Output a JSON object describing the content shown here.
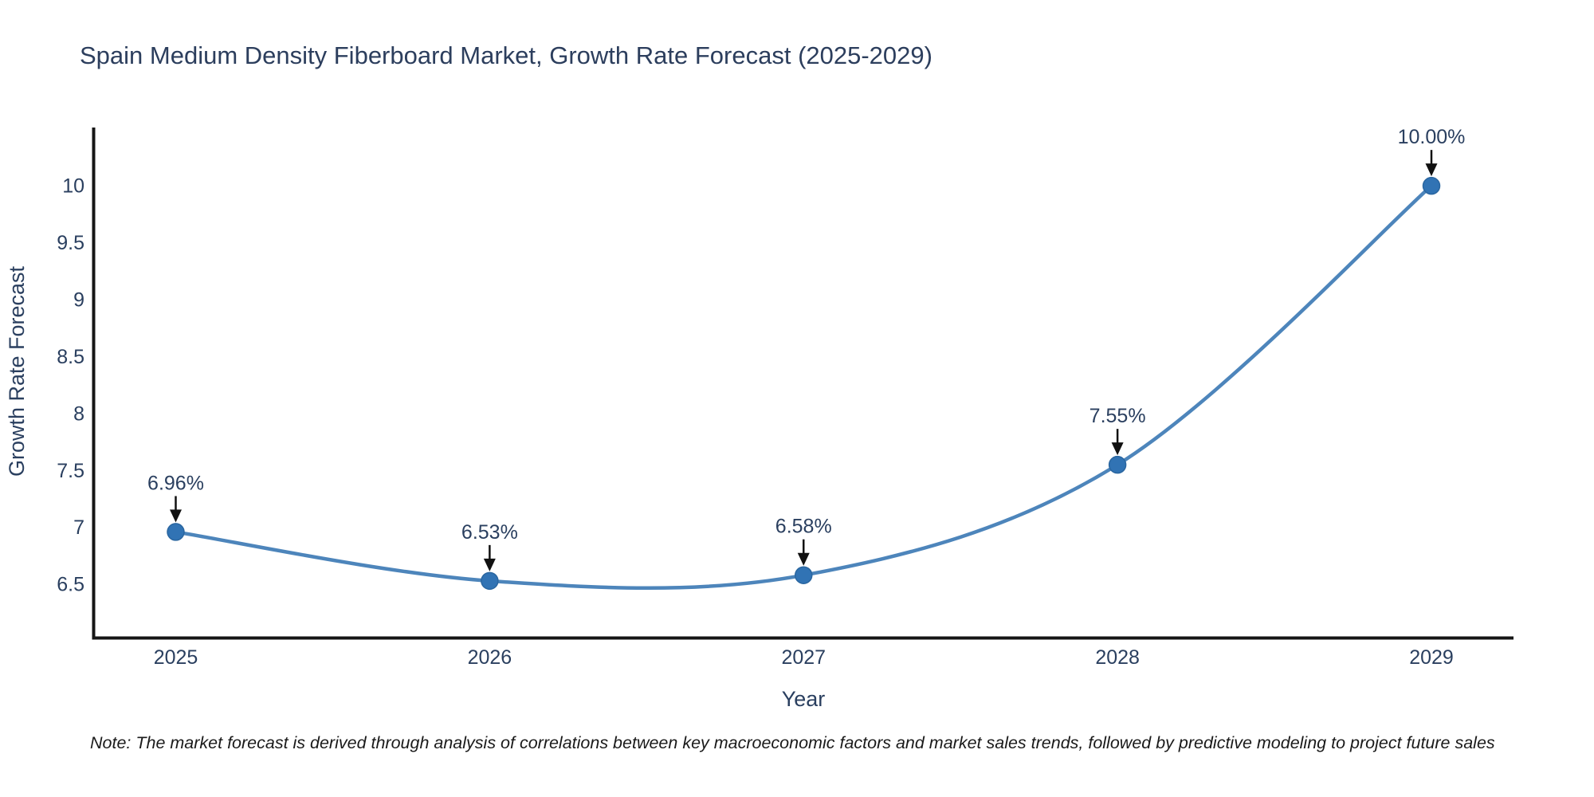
{
  "title": "Spain Medium Density Fiberboard Market, Growth Rate Forecast (2025-2029)",
  "note": "Note: The market forecast is derived through analysis of correlations between key macroeconomic factors and market sales trends, followed by predictive modeling to project future sales",
  "chart_data": {
    "type": "line",
    "title": "Spain Medium Density Fiberboard Market, Growth Rate Forecast (2025-2029)",
    "xlabel": "Year",
    "ylabel": "Growth Rate Forecast",
    "categories": [
      "2025",
      "2026",
      "2027",
      "2028",
      "2029"
    ],
    "values": [
      6.96,
      6.53,
      6.58,
      7.55,
      10.0
    ],
    "point_labels": [
      "6.96%",
      "6.53%",
      "6.58%",
      "7.55%",
      "10.00%"
    ],
    "yticks": [
      6.5,
      7,
      7.5,
      8,
      8.5,
      9,
      9.5,
      10
    ],
    "ylim": [
      6.025,
      10.512
    ],
    "grid": false,
    "legend": false,
    "line_shape": "spline",
    "annotation_style": "value-label-with-down-arrow",
    "colors": {
      "line": "#4d85bb",
      "marker": "#3173b4",
      "marker_edge": "#2a66a0",
      "axis_line": "#161616",
      "axis_text": "#2a3f5f",
      "annotation_text": "#2a3f5f",
      "arrow": "#111111",
      "note_text": "#1a1a1a",
      "title_text": "#2c3e5d"
    }
  }
}
